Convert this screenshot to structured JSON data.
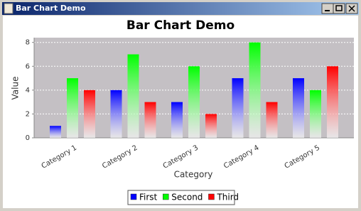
{
  "window_title": "Bar Chart Demo",
  "chart_data": {
    "type": "bar",
    "title": "Bar Chart Demo",
    "x_label": "Category",
    "y_label": "Value",
    "categories": [
      "Category 1",
      "Category 2",
      "Category 3",
      "Category 4",
      "Category 5"
    ],
    "series": [
      {
        "name": "First",
        "color": "#0000ff",
        "values": [
          1,
          4,
          3,
          5,
          5
        ]
      },
      {
        "name": "Second",
        "color": "#00ff00",
        "values": [
          5,
          7,
          6,
          8,
          4
        ]
      },
      {
        "name": "Third",
        "color": "#ff0000",
        "values": [
          4,
          3,
          2,
          3,
          6
        ]
      }
    ],
    "ylim": [
      0,
      8.4
    ],
    "yticks": [
      0,
      2,
      4,
      6,
      8
    ],
    "grid": true,
    "legend": "bottom"
  }
}
